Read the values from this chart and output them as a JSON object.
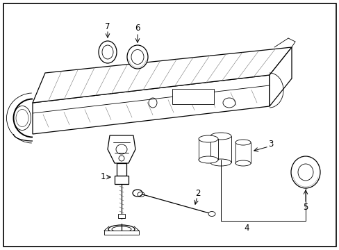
{
  "background_color": "#ffffff",
  "fig_width": 4.89,
  "fig_height": 3.6,
  "dpi": 100,
  "lc": "#000000",
  "lw_thin": 0.6,
  "lw_med": 0.9,
  "lw_thick": 1.4,
  "label_fs": 8.5,
  "gray": "#888888",
  "darkgray": "#555555"
}
